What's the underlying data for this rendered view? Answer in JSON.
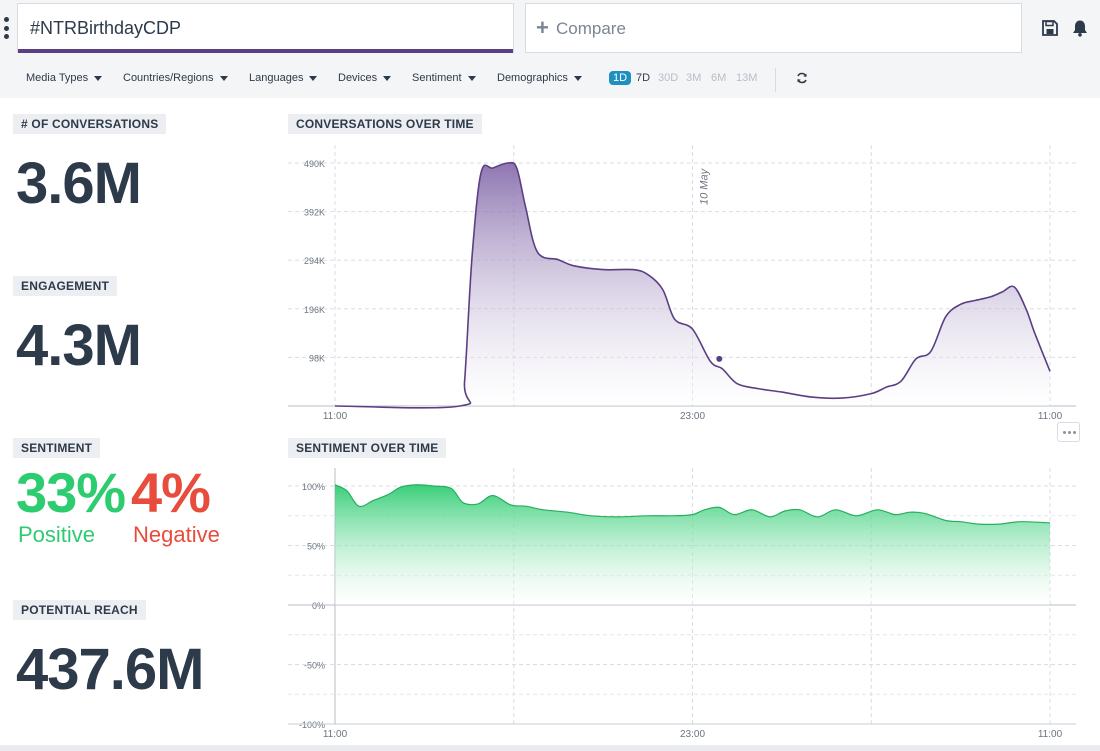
{
  "search": {
    "query": "#NTRBirthdayCDP",
    "compare_label": "Compare",
    "save_icon": "save-icon",
    "bell_icon": "bell-icon"
  },
  "filters": {
    "items": [
      "Media Types",
      "Countries/Regions",
      "Languages",
      "Devices",
      "Sentiment",
      "Demographics"
    ],
    "periods": [
      "1D",
      "7D",
      "30D",
      "3M",
      "6M",
      "13M"
    ],
    "active_period": "1D"
  },
  "metrics": {
    "conversations_label": "# OF CONVERSATIONS",
    "conversations_value": "3.6M",
    "engagement_label": "ENGAGEMENT",
    "engagement_value": "4.3M",
    "sentiment_label": "SENTIMENT",
    "positive_value": "33%",
    "positive_label": "Positive",
    "negative_value": "4%",
    "negative_label": "Negative",
    "reach_label": "POTENTIAL REACH",
    "reach_value": "437.6M"
  },
  "colors": {
    "purple": "#5b3f84",
    "green": "#2ecc71",
    "red": "#e74c3c",
    "active_period": "#1e8fbf"
  },
  "chart_data": [
    {
      "type": "area",
      "title": "CONVERSATIONS OVER TIME",
      "yticks": [
        "98K",
        "196K",
        "294K",
        "392K",
        "490K"
      ],
      "ytick_values": [
        98000,
        196000,
        294000,
        392000,
        490000
      ],
      "ylim": [
        0,
        490000
      ],
      "xlim": [
        0,
        24
      ],
      "xticks": [
        "11:00",
        "23:00",
        "11:00"
      ],
      "xtick_positions": [
        0,
        12,
        24
      ],
      "annotation": "10 May",
      "annotation_x": 12.5,
      "color": "#5b3f84",
      "x": [
        0,
        4.2,
        4.35,
        4.6,
        4.9,
        5.3,
        5.8,
        6.1,
        6.4,
        6.8,
        7.5,
        8,
        9,
        10,
        10.5,
        11,
        11.4,
        12,
        12.6,
        13,
        13.5,
        14.2,
        15,
        16,
        17,
        18,
        18.5,
        19,
        19.5,
        20,
        20.5,
        21,
        21.5,
        22,
        22.4,
        22.8,
        23.2,
        23.5,
        24
      ],
      "values": [
        0,
        0,
        50000,
        300000,
        470000,
        480000,
        490000,
        480000,
        400000,
        310000,
        295000,
        283000,
        275000,
        275000,
        265000,
        235000,
        175000,
        155000,
        90000,
        75000,
        45000,
        35000,
        28000,
        18000,
        16000,
        25000,
        38000,
        50000,
        95000,
        110000,
        180000,
        205000,
        213000,
        220000,
        230000,
        240000,
        195000,
        145000,
        70000
      ]
    },
    {
      "type": "area",
      "title": "SENTIMENT OVER TIME",
      "yticks": [
        "-100%",
        "-50%",
        "0%",
        "50%",
        "100%"
      ],
      "ytick_values": [
        -100,
        -50,
        0,
        50,
        100
      ],
      "ylim": [
        -100,
        100
      ],
      "xlim": [
        0,
        24
      ],
      "xticks": [
        "11:00",
        "23:00",
        "11:00"
      ],
      "xtick_positions": [
        0,
        12,
        24
      ],
      "color": "#2ecc71",
      "x": [
        0,
        0.4,
        0.8,
        1.3,
        1.8,
        2.2,
        2.7,
        3.3,
        3.9,
        4.3,
        4.8,
        5.3,
        5.9,
        6.4,
        7,
        7.8,
        8.6,
        9.5,
        10.5,
        11.3,
        12,
        12.4,
        12.9,
        13.4,
        14,
        14.6,
        15.1,
        15.6,
        16.2,
        16.8,
        17.5,
        18.2,
        18.8,
        19.3,
        19.8,
        20.5,
        21,
        21.6,
        22.3,
        23,
        24
      ],
      "values": [
        101,
        96,
        83,
        88,
        93,
        99,
        101,
        100,
        98,
        86,
        85,
        92,
        84,
        83,
        80,
        78,
        75,
        74,
        75,
        75,
        76,
        80,
        82,
        76,
        80,
        74,
        79,
        80,
        74,
        80,
        75,
        80,
        76,
        78,
        77,
        71,
        70,
        68,
        68,
        70,
        69
      ]
    }
  ]
}
